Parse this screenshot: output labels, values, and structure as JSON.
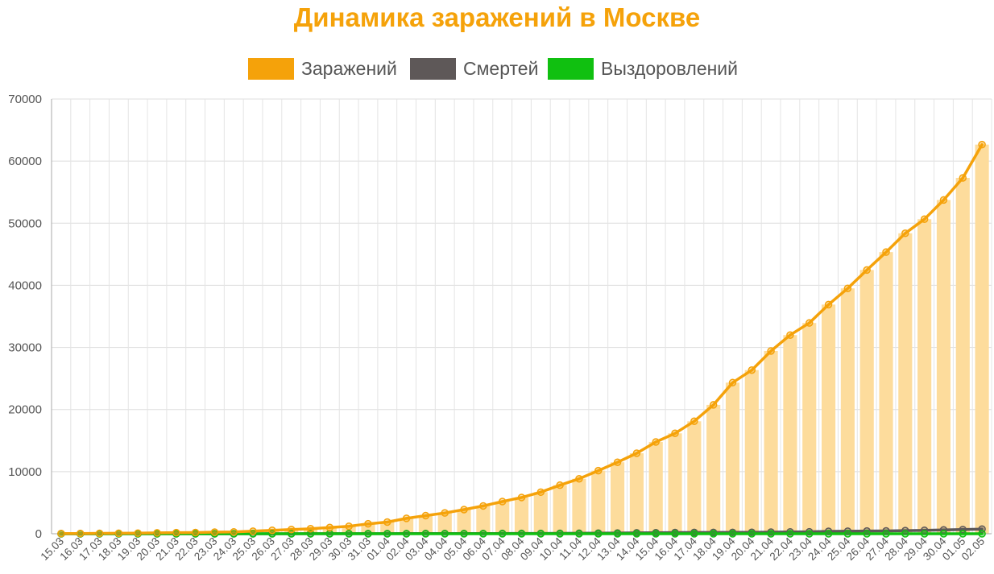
{
  "chart_data": {
    "type": "bar",
    "title": "Динамика заражений в Москве",
    "xlabel": "",
    "ylabel": "",
    "ylim": [
      0,
      70000
    ],
    "y_ticks": [
      0,
      10000,
      20000,
      30000,
      40000,
      50000,
      60000,
      70000
    ],
    "grid": true,
    "legend_position": "top",
    "categories": [
      "15.03",
      "16.03",
      "17.03",
      "18.03",
      "19.03",
      "20.03",
      "21.03",
      "22.03",
      "23.03",
      "24.03",
      "25.03",
      "26.03",
      "27.03",
      "28.03",
      "29.03",
      "30.03",
      "31.03",
      "01.04",
      "02.04",
      "03.04",
      "04.04",
      "05.04",
      "06.04",
      "07.04",
      "08.04",
      "09.04",
      "10.04",
      "11.04",
      "12.04",
      "13.04",
      "14.04",
      "15.04",
      "16.04",
      "17.04",
      "18.04",
      "19.04",
      "20.04",
      "21.04",
      "22.04",
      "23.04",
      "24.04",
      "25.04",
      "26.04",
      "27.04",
      "28.04",
      "29.04",
      "30.04",
      "01.05",
      "02.05"
    ],
    "series": [
      {
        "name": "Заражений",
        "color": "#f5a20a",
        "bar_color": "#fddc9c",
        "values": [
          35,
          45,
          60,
          80,
          100,
          140,
          180,
          200,
          260,
          290,
          410,
          550,
          680,
          810,
          1000,
          1200,
          1600,
          1880,
          2475,
          2920,
          3350,
          3890,
          4480,
          5180,
          5840,
          6700,
          7820,
          8850,
          10160,
          11510,
          12960,
          14780,
          16170,
          18110,
          20750,
          24330,
          26350,
          29430,
          31990,
          33940,
          36900,
          39510,
          42470,
          45350,
          48380,
          50650,
          53740,
          57300,
          62660
        ]
      },
      {
        "name": "Смертей",
        "color": "#5e5858",
        "values": [
          0,
          0,
          0,
          1,
          1,
          1,
          1,
          1,
          1,
          2,
          3,
          5,
          6,
          7,
          8,
          9,
          11,
          17,
          24,
          29,
          30,
          31,
          37,
          44,
          50,
          53,
          61,
          75,
          94,
          112,
          145,
          165,
          191,
          208,
          210,
          218,
          226,
          258,
          294,
          307,
          385,
          407,
          437,
          448,
          502,
          545,
          611,
          672,
          750
        ]
      },
      {
        "name": "Выздоровлений",
        "color": "#10c010",
        "bar_color": "#d5cd6e",
        "values": [
          0,
          0,
          0,
          0,
          0,
          0,
          0,
          0,
          0,
          0,
          0,
          0,
          0,
          0,
          0,
          0,
          0,
          0,
          0,
          0,
          0,
          0,
          0,
          0,
          0,
          0,
          0,
          0,
          0,
          0,
          0,
          0,
          0,
          0,
          0,
          0,
          0,
          0,
          0,
          0,
          0,
          0,
          0,
          0,
          0,
          0,
          0,
          0,
          0
        ]
      }
    ]
  }
}
